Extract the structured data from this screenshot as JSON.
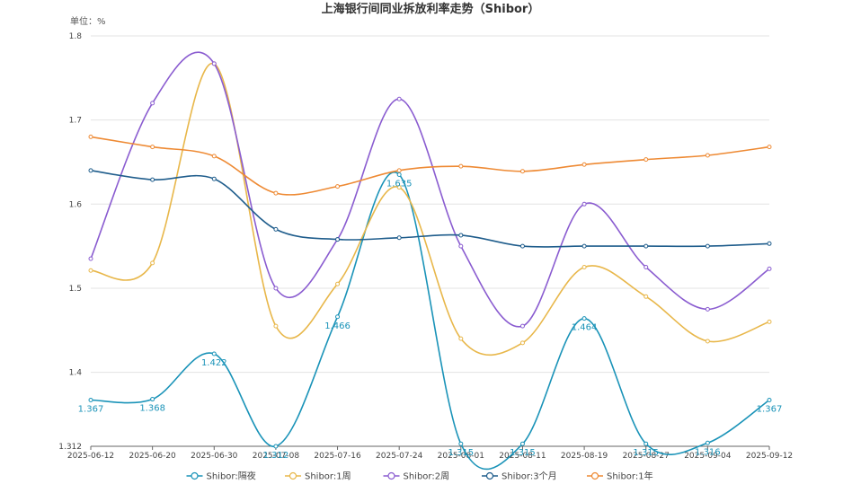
{
  "chart_data": {
    "type": "line",
    "title": "上海银行间同业拆放利率走势（Shibor）",
    "unit_label": "单位：%",
    "xlabel": "",
    "ylabel": "",
    "ylim": [
      1.312,
      1.8
    ],
    "yticks": [
      1.312,
      1.4,
      1.5,
      1.6,
      1.7,
      1.8
    ],
    "grid": true,
    "legend_position": "bottom",
    "x_tick_labels": [
      "2025-06-12",
      "2025-06-20",
      "2025-06-30",
      "2025-07-08",
      "2025-07-16",
      "2025-07-24",
      "2025-08-01",
      "2025-08-11",
      "2025-08-19",
      "2025-08-27",
      "2025-09-04",
      "2025-09-12"
    ],
    "series": [
      {
        "name": "Shibor:隔夜",
        "color": "#1a93b8",
        "values": [
          1.367,
          1.368,
          1.422,
          1.312,
          1.466,
          1.635,
          1.315,
          1.315,
          1.464,
          1.315,
          1.316,
          1.367
        ],
        "value_labels": [
          "1.367",
          "1.368",
          "1.422",
          "1.312",
          "1.466",
          "1.635",
          "1.315",
          "1.315",
          "1.464",
          "1.315",
          "1.316",
          "1.367"
        ]
      },
      {
        "name": "Shibor:1周",
        "color": "#e8b74a",
        "values": [
          1.521,
          1.53,
          1.767,
          1.455,
          1.505,
          1.62,
          1.44,
          1.435,
          1.525,
          1.49,
          1.437,
          1.46
        ]
      },
      {
        "name": "Shibor:2周",
        "color": "#8a5cd0",
        "values": [
          1.535,
          1.72,
          1.767,
          1.5,
          1.558,
          1.725,
          1.55,
          1.455,
          1.6,
          1.525,
          1.475,
          1.523
        ]
      },
      {
        "name": "Shibor:3个月",
        "color": "#1f5d8c",
        "values": [
          1.64,
          1.629,
          1.63,
          1.57,
          1.558,
          1.56,
          1.563,
          1.55,
          1.55,
          1.55,
          1.55,
          1.553
        ]
      },
      {
        "name": "Shibor:1年",
        "color": "#ee8a34",
        "values": [
          1.68,
          1.668,
          1.657,
          1.613,
          1.621,
          1.64,
          1.645,
          1.639,
          1.647,
          1.653,
          1.658,
          1.668
        ]
      }
    ]
  }
}
